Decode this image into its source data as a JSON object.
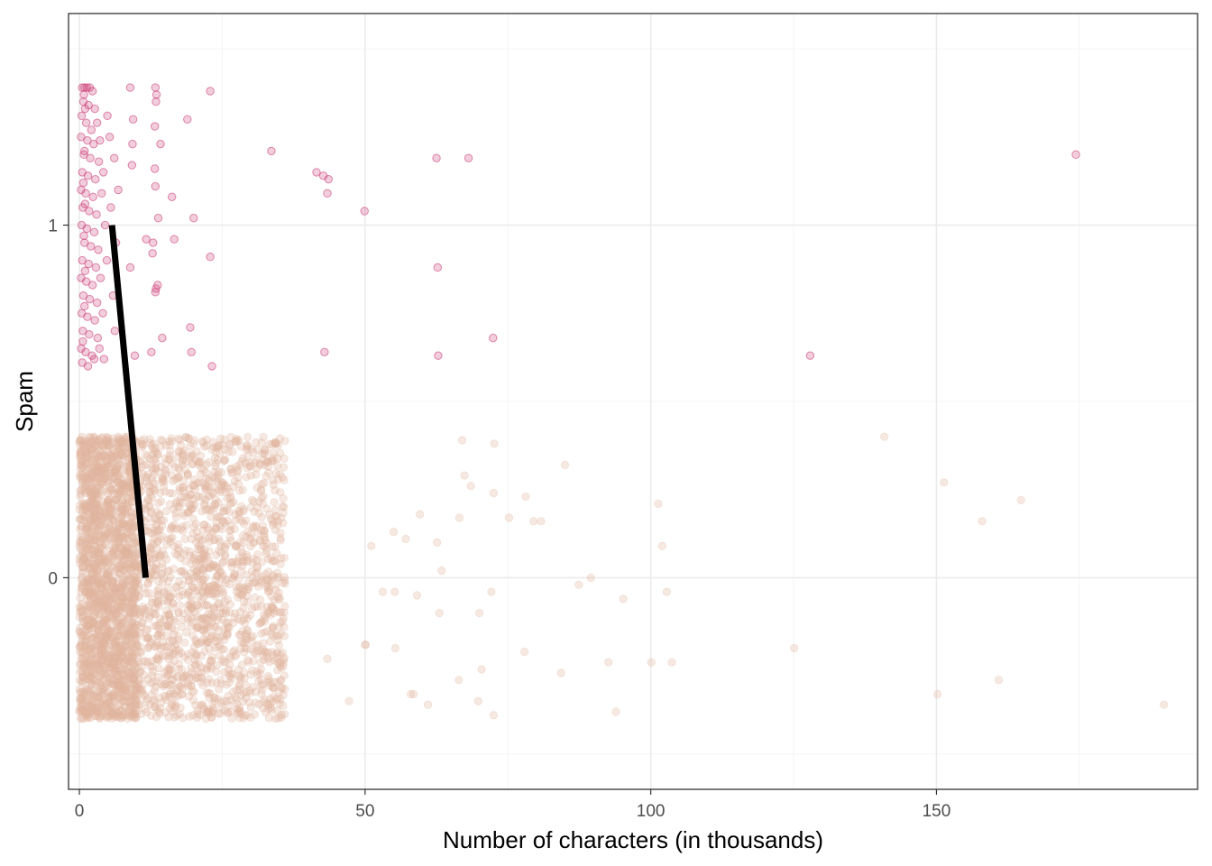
{
  "chart_data": {
    "type": "scatter",
    "xlabel": "Number of characters (in thousands)",
    "ylabel": "Spam",
    "xlim": [
      -1.9,
      195.7
    ],
    "ylim": [
      -0.6,
      1.6
    ],
    "x_ticks": [
      0,
      50,
      100,
      150
    ],
    "x_tick_labels": [
      "0",
      "50",
      "100",
      "150"
    ],
    "x_minor_ticks": [
      25,
      75,
      125,
      175
    ],
    "y_ticks": [
      0,
      1
    ],
    "y_tick_labels": [
      "0",
      "1"
    ],
    "grid": true,
    "jitter": "vertical, ±0.4 around each class",
    "colors": {
      "spam": "#cc3d77",
      "not_spam": "#e0b5a0",
      "fit_line": "#000000"
    },
    "series": [
      {
        "class": 1,
        "points": [
          [
            8.9,
            1.39
          ],
          [
            13.3,
            1.39
          ],
          [
            13.5,
            1.37
          ],
          [
            22.9,
            1.38
          ],
          [
            13.4,
            1.35
          ],
          [
            9.4,
            1.3
          ],
          [
            18.9,
            1.3
          ],
          [
            13.2,
            1.28
          ],
          [
            9.3,
            1.23
          ],
          [
            14.2,
            1.23
          ],
          [
            33.6,
            1.21
          ],
          [
            62.5,
            1.19
          ],
          [
            68.1,
            1.19
          ],
          [
            174.4,
            1.2
          ],
          [
            9.2,
            1.17
          ],
          [
            13.2,
            1.16
          ],
          [
            41.5,
            1.15
          ],
          [
            42.7,
            1.14
          ],
          [
            43.6,
            1.13
          ],
          [
            13.3,
            1.11
          ],
          [
            43.4,
            1.09
          ],
          [
            16.2,
            1.08
          ],
          [
            49.9,
            1.04
          ],
          [
            13.8,
            1.02
          ],
          [
            20.0,
            1.02
          ],
          [
            11.7,
            0.96
          ],
          [
            12.9,
            0.95
          ],
          [
            16.6,
            0.96
          ],
          [
            12.8,
            0.92
          ],
          [
            22.9,
            0.91
          ],
          [
            62.7,
            0.88
          ],
          [
            8.9,
            0.88
          ],
          [
            13.4,
            0.82
          ],
          [
            13.3,
            0.81
          ],
          [
            13.7,
            0.83
          ],
          [
            19.4,
            0.71
          ],
          [
            14.5,
            0.68
          ],
          [
            72.4,
            0.68
          ],
          [
            12.6,
            0.64
          ],
          [
            42.9,
            0.64
          ],
          [
            62.8,
            0.63
          ],
          [
            127.9,
            0.63
          ],
          [
            19.6,
            0.64
          ],
          [
            23.2,
            0.6
          ],
          [
            9.7,
            0.63
          ],
          [
            0.5,
            1.39
          ],
          [
            0.9,
            1.39
          ],
          [
            1.3,
            1.39
          ],
          [
            1.8,
            1.39
          ],
          [
            2.3,
            1.38
          ],
          [
            0.7,
            1.35
          ],
          [
            1.6,
            1.34
          ],
          [
            2.7,
            1.33
          ],
          [
            0.4,
            1.31
          ],
          [
            1.2,
            1.29
          ],
          [
            2.1,
            1.27
          ],
          [
            3.1,
            1.29
          ],
          [
            4.9,
            1.31
          ],
          [
            0.3,
            1.25
          ],
          [
            1.4,
            1.24
          ],
          [
            2.5,
            1.23
          ],
          [
            3.6,
            1.24
          ],
          [
            5.3,
            1.25
          ],
          [
            0.8,
            1.2
          ],
          [
            1.9,
            1.19
          ],
          [
            3.4,
            1.18
          ],
          [
            6.1,
            1.19
          ],
          [
            0.5,
            1.15
          ],
          [
            1.5,
            1.14
          ],
          [
            2.8,
            1.13
          ],
          [
            4.2,
            1.15
          ],
          [
            0.3,
            1.1
          ],
          [
            1.1,
            1.09
          ],
          [
            2.4,
            1.08
          ],
          [
            3.9,
            1.09
          ],
          [
            6.8,
            1.1
          ],
          [
            0.6,
            1.05
          ],
          [
            1.7,
            1.04
          ],
          [
            3.0,
            1.03
          ],
          [
            5.5,
            1.05
          ],
          [
            0.4,
            1.0
          ],
          [
            1.3,
            0.99
          ],
          [
            2.6,
            0.98
          ],
          [
            4.5,
            1.0
          ],
          [
            0.9,
            0.95
          ],
          [
            2.0,
            0.94
          ],
          [
            3.3,
            0.93
          ],
          [
            6.4,
            0.95
          ],
          [
            0.5,
            0.9
          ],
          [
            1.6,
            0.89
          ],
          [
            2.9,
            0.88
          ],
          [
            4.8,
            0.9
          ],
          [
            0.3,
            0.85
          ],
          [
            1.2,
            0.84
          ],
          [
            2.3,
            0.83
          ],
          [
            3.7,
            0.85
          ],
          [
            0.7,
            0.8
          ],
          [
            1.8,
            0.79
          ],
          [
            3.1,
            0.78
          ],
          [
            5.9,
            0.8
          ],
          [
            0.4,
            0.75
          ],
          [
            1.4,
            0.74
          ],
          [
            2.7,
            0.73
          ],
          [
            4.1,
            0.75
          ],
          [
            0.6,
            0.7
          ],
          [
            1.7,
            0.69
          ],
          [
            3.2,
            0.68
          ],
          [
            6.2,
            0.7
          ],
          [
            0.3,
            0.65
          ],
          [
            1.1,
            0.64
          ],
          [
            2.2,
            0.63
          ],
          [
            3.5,
            0.65
          ],
          [
            0.5,
            0.61
          ],
          [
            1.5,
            0.6
          ],
          [
            2.6,
            0.62
          ],
          [
            4.3,
            0.62
          ],
          [
            0.8,
            1.37
          ],
          [
            1.0,
            1.33
          ],
          [
            0.9,
            1.21
          ],
          [
            0.7,
            1.12
          ],
          [
            1.0,
            1.06
          ],
          [
            0.8,
            0.97
          ],
          [
            1.0,
            0.87
          ],
          [
            0.9,
            0.77
          ],
          [
            0.6,
            0.67
          ]
        ]
      },
      {
        "class": 0,
        "points": [
          [
            140.9,
            0.4
          ],
          [
            151.3,
            0.27
          ],
          [
            164.8,
            0.22
          ],
          [
            158.0,
            0.16
          ],
          [
            101.3,
            0.21
          ],
          [
            102.0,
            0.09
          ],
          [
            85.0,
            0.32
          ],
          [
            78.1,
            0.23
          ],
          [
            80.8,
            0.16
          ],
          [
            79.5,
            0.16
          ],
          [
            75.2,
            0.17
          ],
          [
            72.5,
            0.24
          ],
          [
            72.6,
            0.38
          ],
          [
            67.0,
            0.39
          ],
          [
            67.4,
            0.29
          ],
          [
            68.5,
            0.26
          ],
          [
            66.5,
            0.17
          ],
          [
            63.4,
            0.02
          ],
          [
            59.6,
            0.18
          ],
          [
            62.6,
            0.1
          ],
          [
            55.0,
            0.13
          ],
          [
            57.1,
            0.11
          ],
          [
            51.1,
            0.09
          ],
          [
            87.4,
            -0.02
          ],
          [
            89.5,
            0.0
          ],
          [
            95.2,
            -0.06
          ],
          [
            102.8,
            -0.04
          ],
          [
            72.1,
            -0.04
          ],
          [
            70.0,
            -0.1
          ],
          [
            55.2,
            -0.04
          ],
          [
            53.1,
            -0.04
          ],
          [
            59.1,
            -0.05
          ],
          [
            63.0,
            -0.1
          ],
          [
            50.1,
            -0.19
          ],
          [
            55.3,
            -0.2
          ],
          [
            77.9,
            -0.21
          ],
          [
            92.6,
            -0.24
          ],
          [
            100.1,
            -0.24
          ],
          [
            103.7,
            -0.24
          ],
          [
            125.1,
            -0.2
          ],
          [
            84.3,
            -0.27
          ],
          [
            160.9,
            -0.29
          ],
          [
            150.2,
            -0.33
          ],
          [
            189.8,
            -0.36
          ],
          [
            66.4,
            -0.29
          ],
          [
            58.5,
            -0.33
          ],
          [
            69.8,
            -0.35
          ],
          [
            72.5,
            -0.39
          ],
          [
            93.9,
            -0.38
          ],
          [
            70.4,
            -0.26
          ],
          [
            61.0,
            -0.36
          ],
          [
            47.2,
            -0.35
          ],
          [
            50.0,
            -0.19
          ],
          [
            43.4,
            -0.23
          ],
          [
            58.0,
            -0.33
          ]
        ],
        "dense_region": {
          "x_range": [
            0,
            36
          ],
          "y_range": [
            -0.4,
            0.4
          ],
          "approx_points": 3500
        }
      }
    ],
    "fit_line": {
      "x": [
        5.7,
        11.6
      ],
      "y": [
        1.0,
        0.0
      ]
    }
  }
}
